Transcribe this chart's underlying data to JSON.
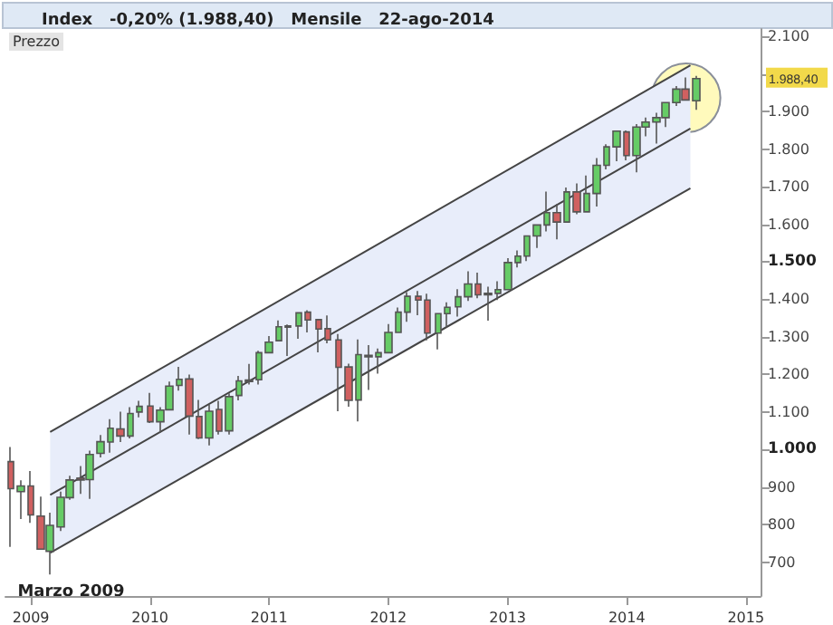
{
  "chart_data": {
    "type": "candlestick",
    "title": "Index   -0,20% (1.988,40)   Mensile   22-ago-2014",
    "x": [
      "2008-11",
      "2008-12",
      "2009-01",
      "2009-02",
      "2009-03",
      "2009-04",
      "2009-05",
      "2009-06",
      "2009-07",
      "2009-08",
      "2009-09",
      "2009-10",
      "2009-11",
      "2009-12",
      "2010-01",
      "2010-02",
      "2010-03",
      "2010-04",
      "2010-05",
      "2010-06",
      "2010-07",
      "2010-08",
      "2010-09",
      "2010-10",
      "2010-11",
      "2010-12",
      "2011-01",
      "2011-02",
      "2011-03",
      "2011-04",
      "2011-05",
      "2011-06",
      "2011-07",
      "2011-08",
      "2011-09",
      "2011-10",
      "2011-11",
      "2011-12",
      "2012-01",
      "2012-02",
      "2012-03",
      "2012-04",
      "2012-05",
      "2012-06",
      "2012-07",
      "2012-08",
      "2012-09",
      "2012-10",
      "2012-11",
      "2012-12",
      "2013-01",
      "2013-02",
      "2013-03",
      "2013-04",
      "2013-05",
      "2013-06",
      "2013-07",
      "2013-08",
      "2013-09",
      "2013-10",
      "2013-11",
      "2013-12",
      "2014-01",
      "2014-02",
      "2014-03",
      "2014-04",
      "2014-05",
      "2014-06",
      "2014-07",
      "2014-08"
    ],
    "ohlc": [
      [
        968,
        1007,
        741,
        896
      ],
      [
        888,
        918,
        815,
        903
      ],
      [
        903,
        943,
        805,
        826
      ],
      [
        823,
        875,
        735,
        735
      ],
      [
        729,
        832,
        667,
        798
      ],
      [
        794,
        888,
        783,
        873
      ],
      [
        872,
        930,
        866,
        919
      ],
      [
        924,
        956,
        882,
        919
      ],
      [
        920,
        997,
        869,
        987
      ],
      [
        990,
        1039,
        979,
        1021
      ],
      [
        1020,
        1081,
        992,
        1057
      ],
      [
        1055,
        1101,
        1020,
        1036
      ],
      [
        1036,
        1113,
        1030,
        1096
      ],
      [
        1100,
        1130,
        1086,
        1115
      ],
      [
        1116,
        1151,
        1071,
        1074
      ],
      [
        1074,
        1113,
        1045,
        1105
      ],
      [
        1106,
        1181,
        1105,
        1169
      ],
      [
        1171,
        1220,
        1157,
        1187
      ],
      [
        1188,
        1200,
        1040,
        1089
      ],
      [
        1088,
        1132,
        1028,
        1031
      ],
      [
        1031,
        1120,
        1011,
        1102
      ],
      [
        1107,
        1130,
        1040,
        1049
      ],
      [
        1050,
        1150,
        1040,
        1141
      ],
      [
        1144,
        1196,
        1131,
        1183
      ],
      [
        1185,
        1228,
        1173,
        1181
      ],
      [
        1186,
        1263,
        1173,
        1258
      ],
      [
        1258,
        1302,
        1257,
        1286
      ],
      [
        1290,
        1344,
        1290,
        1327
      ],
      [
        1329,
        1333,
        1249,
        1326
      ],
      [
        1329,
        1365,
        1295,
        1364
      ],
      [
        1366,
        1371,
        1312,
        1345
      ],
      [
        1346,
        1347,
        1259,
        1321
      ],
      [
        1322,
        1357,
        1283,
        1292
      ],
      [
        1292,
        1308,
        1102,
        1219
      ],
      [
        1220,
        1229,
        1114,
        1131
      ],
      [
        1132,
        1293,
        1075,
        1253
      ],
      [
        1251,
        1278,
        1159,
        1247
      ],
      [
        1247,
        1269,
        1202,
        1258
      ],
      [
        1258,
        1334,
        1258,
        1312
      ],
      [
        1312,
        1378,
        1312,
        1366
      ],
      [
        1366,
        1419,
        1340,
        1408
      ],
      [
        1408,
        1422,
        1358,
        1398
      ],
      [
        1398,
        1415,
        1291,
        1310
      ],
      [
        1310,
        1363,
        1267,
        1362
      ],
      [
        1362,
        1392,
        1325,
        1379
      ],
      [
        1380,
        1427,
        1354,
        1407
      ],
      [
        1407,
        1475,
        1396,
        1441
      ],
      [
        1441,
        1471,
        1403,
        1412
      ],
      [
        1412,
        1434,
        1343,
        1416
      ],
      [
        1416,
        1448,
        1398,
        1426
      ],
      [
        1426,
        1510,
        1426,
        1498
      ],
      [
        1498,
        1530,
        1485,
        1515
      ],
      [
        1515,
        1570,
        1502,
        1569
      ],
      [
        1569,
        1598,
        1537,
        1598
      ],
      [
        1598,
        1687,
        1581,
        1631
      ],
      [
        1631,
        1654,
        1560,
        1606
      ],
      [
        1606,
        1698,
        1605,
        1686
      ],
      [
        1686,
        1709,
        1627,
        1633
      ],
      [
        1633,
        1730,
        1633,
        1682
      ],
      [
        1682,
        1776,
        1647,
        1757
      ],
      [
        1757,
        1813,
        1746,
        1806
      ],
      [
        1806,
        1849,
        1768,
        1848
      ],
      [
        1846,
        1850,
        1770,
        1783
      ],
      [
        1783,
        1867,
        1738,
        1859
      ],
      [
        1859,
        1884,
        1834,
        1872
      ],
      [
        1872,
        1897,
        1815,
        1884
      ],
      [
        1884,
        1924,
        1859,
        1924
      ],
      [
        1924,
        1968,
        1915,
        1960
      ],
      [
        1960,
        1991,
        1931,
        1931
      ],
      [
        1929,
        1995,
        1905,
        1988
      ]
    ],
    "colors": [
      "#d06060",
      "#66cc66",
      "#d06060",
      "#d06060",
      "#66cc66",
      "#66cc66",
      "#66cc66",
      "#d06060",
      "#66cc66",
      "#66cc66",
      "#66cc66",
      "#d06060",
      "#66cc66",
      "#66cc66",
      "#d06060",
      "#66cc66",
      "#66cc66",
      "#66cc66",
      "#d06060",
      "#d06060",
      "#66cc66",
      "#d06060",
      "#66cc66",
      "#66cc66",
      "#d06060",
      "#66cc66",
      "#66cc66",
      "#66cc66",
      "#d06060",
      "#66cc66",
      "#d06060",
      "#d06060",
      "#d06060",
      "#d06060",
      "#d06060",
      "#66cc66",
      "#d06060",
      "#66cc66",
      "#66cc66",
      "#66cc66",
      "#66cc66",
      "#d06060",
      "#d06060",
      "#66cc66",
      "#66cc66",
      "#66cc66",
      "#66cc66",
      "#d06060",
      "#66cc66",
      "#66cc66",
      "#66cc66",
      "#66cc66",
      "#66cc66",
      "#66cc66",
      "#66cc66",
      "#d06060",
      "#66cc66",
      "#d06060",
      "#66cc66",
      "#66cc66",
      "#66cc66",
      "#66cc66",
      "#d06060",
      "#66cc66",
      "#66cc66",
      "#66cc66",
      "#66cc66",
      "#66cc66",
      "#d06060",
      "#66cc66"
    ],
    "series": [
      {
        "type": "line",
        "color": "#444444",
        "x": [
          "2009-03",
          "2014-07-15"
        ],
        "values": [
          1047,
          2023
        ]
      },
      {
        "type": "line",
        "color": "#444444",
        "x": [
          "2009-03",
          "2014-07-15"
        ],
        "values": [
          879,
          1855
        ],
        "lower": [
          725,
          1696
        ],
        "upper": [
          1047,
          2023
        ]
      },
      {
        "type": "line",
        "color": "#444444",
        "x": [
          "2009-03",
          "2014-07-15"
        ],
        "values": [
          725,
          1696
        ]
      }
    ],
    "xlim": [
      "2008-10-15",
      "2015-02-15"
    ],
    "xticks": [
      "2009",
      "2010",
      "2011",
      "2012",
      "2013",
      "2014",
      "2015"
    ],
    "ylim": [
      610,
      2120
    ],
    "yticks": [
      {
        "value": 700,
        "label": "700"
      },
      {
        "value": 800,
        "label": "800"
      },
      {
        "value": 900,
        "label": "900"
      },
      {
        "value": 1000,
        "label": "1.000"
      },
      {
        "value": 1100,
        "label": "1.100"
      },
      {
        "value": 1200,
        "label": "1.200"
      },
      {
        "value": 1300,
        "label": "1.300"
      },
      {
        "value": 1400,
        "label": "1.400"
      },
      {
        "value": 1500,
        "label": "1.500"
      },
      {
        "value": 1600,
        "label": "1.600"
      },
      {
        "value": 1700,
        "label": "1.700"
      },
      {
        "value": 1800,
        "label": "1.800"
      },
      {
        "value": 1900,
        "label": "1.900"
      },
      {
        "value": 2000,
        "label": null
      },
      {
        "value": 2100,
        "label": "2.100"
      }
    ],
    "annotations": [
      "Prezzo",
      {
        "text": "Marzo 2009",
        "x": "2009-03",
        "y": 667
      },
      "1.988,40"
    ],
    "grid": false
  }
}
